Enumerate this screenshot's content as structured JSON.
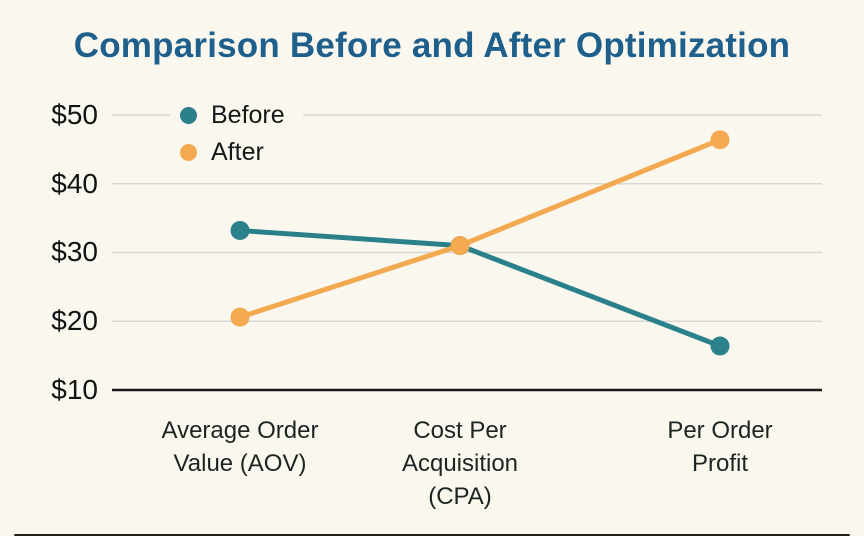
{
  "chart_data": {
    "type": "line",
    "title": "Comparison Before and After Optimization",
    "categories": [
      "Average Order\nValue (AOV)",
      "Cost Per\nAcquisition\n(CPA)",
      "Per Order\nProfit"
    ],
    "series": [
      {
        "name": "Before",
        "color": "#2a818b",
        "values": [
          33.2,
          31.0,
          16.4
        ]
      },
      {
        "name": "After",
        "color": "#f3a950",
        "values": [
          20.6,
          31.0,
          46.4
        ]
      }
    ],
    "yticks": [
      "$50",
      "$40",
      "$30",
      "$20",
      "$10"
    ],
    "ylim": [
      10,
      50
    ],
    "ytick_step": 10,
    "grid": true,
    "legend_position": "top-left",
    "colors": {
      "title": "#1e5f8c",
      "gridline": "#d8d8d5",
      "axis_line": "#1a1a1a",
      "background": "#faf7ee",
      "tick_text": "#101412"
    }
  }
}
